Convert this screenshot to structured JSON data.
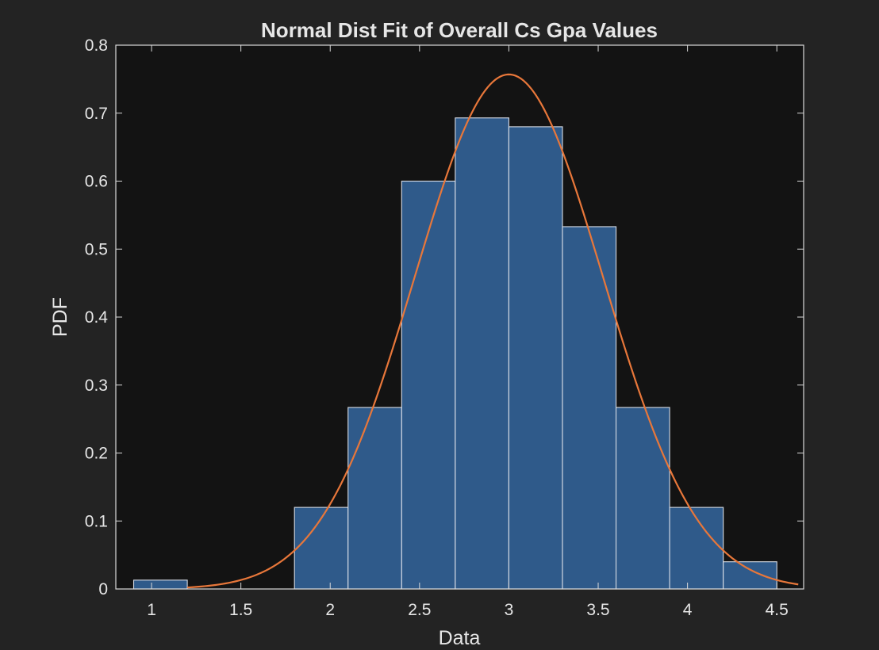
{
  "chart_data": {
    "type": "bar",
    "title": "Normal Dist Fit of Overall Cs Gpa Values",
    "xlabel": "Data",
    "ylabel": "PDF",
    "xlim": [
      0.8,
      4.65
    ],
    "ylim": [
      0,
      0.8
    ],
    "xticks": [
      "1",
      "1.5",
      "2",
      "2.5",
      "3",
      "3.5",
      "4",
      "4.5"
    ],
    "yticks": [
      "0",
      "0.1",
      "0.2",
      "0.3",
      "0.4",
      "0.5",
      "0.6",
      "0.7",
      "0.8"
    ],
    "grid": false,
    "series": [
      {
        "type": "histogram",
        "bin_edges": [
          0.9,
          1.2,
          1.5,
          1.8,
          2.1,
          2.4,
          2.7,
          3.0,
          3.3,
          3.6,
          3.9,
          4.2,
          4.5
        ],
        "values": [
          0.013,
          0.0,
          0.0,
          0.12,
          0.267,
          0.6,
          0.693,
          0.68,
          0.533,
          0.267,
          0.12,
          0.04
        ],
        "color": "#2f5a8a",
        "edge_color": "#d8dde6"
      },
      {
        "type": "line",
        "distribution": "normal",
        "mu": 3.0,
        "sigma": 0.527,
        "peak": 0.757,
        "x_range": [
          1.2,
          4.62
        ],
        "color": "#e8773a"
      }
    ]
  },
  "colors": {
    "figure_bg": "#232323",
    "axes_bg": "#131313",
    "axes_edge": "#d9d9d9",
    "text": "#e6e6e6"
  }
}
